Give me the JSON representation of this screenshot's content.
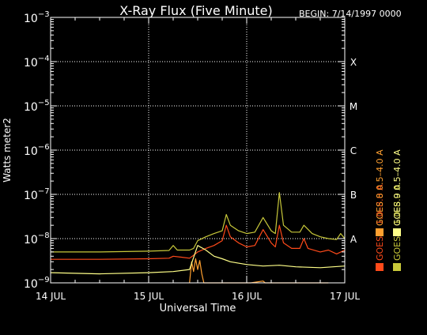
{
  "chart_data": {
    "type": "line",
    "title": "X-Ray Flux (Five Minute)",
    "begin_label": "BEGIN: 7/14/1997 0000",
    "xlabel": "Universal Time",
    "ylabel": "Watts meter2",
    "y_scale": "log",
    "ylim": [
      1e-09,
      0.001
    ],
    "xlim": [
      "1997-07-14 00:00",
      "1997-07-17 00:00"
    ],
    "x_ticks": [
      {
        "at": "1997-07-14 00:00",
        "label": "14 JUL"
      },
      {
        "at": "1997-07-15 00:00",
        "label": "15 JUL"
      },
      {
        "at": "1997-07-16 00:00",
        "label": "16 JUL"
      },
      {
        "at": "1997-07-17 00:00",
        "label": "17 JUL"
      }
    ],
    "y_ticks": [
      {
        "value": 1e-09,
        "base": "10",
        "exp": "−9"
      },
      {
        "value": 1e-08,
        "base": "10",
        "exp": "−8"
      },
      {
        "value": 1e-07,
        "base": "10",
        "exp": "−7"
      },
      {
        "value": 1e-06,
        "base": "10",
        "exp": "−6"
      },
      {
        "value": 1e-05,
        "base": "10",
        "exp": "−5"
      },
      {
        "value": 0.0001,
        "base": "10",
        "exp": "−4"
      },
      {
        "value": 0.001,
        "base": "10",
        "exp": "−3"
      }
    ],
    "class_labels": [
      {
        "value": 0.0001,
        "label": "X"
      },
      {
        "value": 1e-05,
        "label": "M"
      },
      {
        "value": 1e-06,
        "label": "C"
      },
      {
        "value": 1e-07,
        "label": "B"
      },
      {
        "value": 1e-08,
        "label": "A"
      }
    ],
    "grid": {
      "horizontal_dotted": true,
      "vertical_dotted": true
    },
    "legend": [
      {
        "name": "GOES 8  1.0–8.0 A",
        "color": "#ff4a1a"
      },
      {
        "name": "GOES 8  0.5–4.0 A",
        "color": "#ffa030"
      },
      {
        "name": "GOES 9  1.0–8.0 A",
        "color": "#c8c83a"
      },
      {
        "name": "GOES 9  0.5–4.0 A",
        "color": "#ffff88"
      }
    ],
    "series": [
      {
        "name": "GOES 8  1.0–8.0 A",
        "color": "#ff4a1a",
        "points": [
          [
            "1997-07-14 00:00",
            3.4e-09
          ],
          [
            "1997-07-14 12:00",
            3.4e-09
          ],
          [
            "1997-07-15 00:00",
            3.5e-09
          ],
          [
            "1997-07-15 05:00",
            3.6e-09
          ],
          [
            "1997-07-15 06:00",
            4e-09
          ],
          [
            "1997-07-15 08:00",
            3.8e-09
          ],
          [
            "1997-07-15 10:00",
            3.6e-09
          ],
          [
            "1997-07-15 11:00",
            4.2e-09
          ],
          [
            "1997-07-15 12:00",
            5e-09
          ],
          [
            "1997-07-15 14:00",
            6e-09
          ],
          [
            "1997-07-15 16:00",
            7e-09
          ],
          [
            "1997-07-15 18:00",
            9e-09
          ],
          [
            "1997-07-15 19:00",
            2e-08
          ],
          [
            "1997-07-15 20:00",
            1.1e-08
          ],
          [
            "1997-07-15 22:00",
            8e-09
          ],
          [
            "1997-07-16 00:00",
            6.5e-09
          ],
          [
            "1997-07-16 02:00",
            7e-09
          ],
          [
            "1997-07-16 04:00",
            1.6e-08
          ],
          [
            "1997-07-16 06:00",
            8e-09
          ],
          [
            "1997-07-16 07:00",
            6.5e-09
          ],
          [
            "1997-07-16 08:00",
            2e-08
          ],
          [
            "1997-07-16 09:00",
            8e-09
          ],
          [
            "1997-07-16 11:00",
            6e-09
          ],
          [
            "1997-07-16 13:00",
            6e-09
          ],
          [
            "1997-07-16 14:00",
            1e-08
          ],
          [
            "1997-07-16 15:00",
            6e-09
          ],
          [
            "1997-07-16 18:00",
            5e-09
          ],
          [
            "1997-07-16 20:00",
            5.5e-09
          ],
          [
            "1997-07-16 22:00",
            4.5e-09
          ],
          [
            "1997-07-17 00:00",
            5.5e-09
          ]
        ]
      },
      {
        "name": "GOES 8  0.5–4.0 A",
        "color": "#ffa030",
        "points": [
          [
            "1997-07-15 10:00",
            1e-09
          ],
          [
            "1997-07-15 10:30",
            3e-09
          ],
          [
            "1997-07-15 11:00",
            1.8e-09
          ],
          [
            "1997-07-15 11:30",
            3.5e-09
          ],
          [
            "1997-07-15 12:00",
            2e-09
          ],
          [
            "1997-07-15 12:30",
            3.2e-09
          ],
          [
            "1997-07-15 13:00",
            1.6e-09
          ],
          [
            "1997-07-15 13:30",
            1e-09
          ],
          [
            "1997-07-16 01:00",
            1e-09
          ],
          [
            "1997-07-16 04:00",
            1.1e-09
          ],
          [
            "1997-07-16 04:30",
            1e-09
          ],
          [
            "1997-07-16 20:00",
            1e-09
          ]
        ]
      },
      {
        "name": "GOES 9  1.0–8.0 A",
        "color": "#c8c83a",
        "points": [
          [
            "1997-07-14 00:00",
            5e-09
          ],
          [
            "1997-07-14 12:00",
            5e-09
          ],
          [
            "1997-07-15 00:00",
            5.2e-09
          ],
          [
            "1997-07-15 05:00",
            5.4e-09
          ],
          [
            "1997-07-15 06:00",
            7e-09
          ],
          [
            "1997-07-15 07:00",
            5.5e-09
          ],
          [
            "1997-07-15 10:00",
            5.5e-09
          ],
          [
            "1997-07-15 11:00",
            6e-09
          ],
          [
            "1997-07-15 12:00",
            9e-09
          ],
          [
            "1997-07-15 14:00",
            1.1e-08
          ],
          [
            "1997-07-15 16:00",
            1.3e-08
          ],
          [
            "1997-07-15 18:00",
            1.5e-08
          ],
          [
            "1997-07-15 19:00",
            3.5e-08
          ],
          [
            "1997-07-15 20:00",
            2e-08
          ],
          [
            "1997-07-15 22:00",
            1.5e-08
          ],
          [
            "1997-07-16 00:00",
            1.3e-08
          ],
          [
            "1997-07-16 02:00",
            1.4e-08
          ],
          [
            "1997-07-16 04:00",
            3e-08
          ],
          [
            "1997-07-16 06:00",
            1.5e-08
          ],
          [
            "1997-07-16 07:00",
            1.3e-08
          ],
          [
            "1997-07-16 08:00",
            1.1e-07
          ],
          [
            "1997-07-16 09:00",
            2e-08
          ],
          [
            "1997-07-16 11:00",
            1.4e-08
          ],
          [
            "1997-07-16 13:00",
            1.4e-08
          ],
          [
            "1997-07-16 14:00",
            2e-08
          ],
          [
            "1997-07-16 16:00",
            1.3e-08
          ],
          [
            "1997-07-16 18:00",
            1.1e-08
          ],
          [
            "1997-07-16 20:00",
            1e-08
          ],
          [
            "1997-07-16 22:00",
            9.5e-09
          ],
          [
            "1997-07-16 23:00",
            1.3e-08
          ],
          [
            "1997-07-17 00:00",
            1e-08
          ]
        ]
      },
      {
        "name": "GOES 9  0.5–4.0 A",
        "color": "#ffff88",
        "points": [
          [
            "1997-07-14 00:00",
            1.7e-09
          ],
          [
            "1997-07-14 12:00",
            1.6e-09
          ],
          [
            "1997-07-15 00:00",
            1.7e-09
          ],
          [
            "1997-07-15 06:00",
            1.8e-09
          ],
          [
            "1997-07-15 10:00",
            2e-09
          ],
          [
            "1997-07-15 12:00",
            7e-09
          ],
          [
            "1997-07-15 14:00",
            5.5e-09
          ],
          [
            "1997-07-15 16:00",
            4e-09
          ],
          [
            "1997-07-15 18:00",
            3.5e-09
          ],
          [
            "1997-07-15 20:00",
            3e-09
          ],
          [
            "1997-07-16 00:00",
            2.6e-09
          ],
          [
            "1997-07-16 04:00",
            2.4e-09
          ],
          [
            "1997-07-16 08:00",
            2.5e-09
          ],
          [
            "1997-07-16 12:00",
            2.3e-09
          ],
          [
            "1997-07-16 18:00",
            2.2e-09
          ],
          [
            "1997-07-17 00:00",
            2.4e-09
          ]
        ]
      }
    ]
  }
}
